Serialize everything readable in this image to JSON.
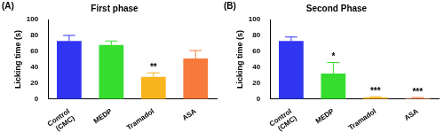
{
  "chart_data": [
    {
      "type": "bar",
      "panel_label": "(A)",
      "title": "First phase",
      "y_label": "Licking time (s)",
      "categories": [
        "Control (CMC)",
        "MEDP",
        "Tramadol",
        "ASA"
      ],
      "values": [
        73,
        68,
        28,
        51
      ],
      "errors": [
        7,
        5,
        5,
        10
      ],
      "significance": [
        null,
        null,
        "**",
        null
      ],
      "colors": [
        "#3035f2",
        "#35dd2e",
        "#f9b51d",
        "#f77a3a"
      ],
      "ylim": [
        0,
        100
      ],
      "yticks": [
        0,
        20,
        40,
        60,
        80,
        100
      ],
      "grid": false
    },
    {
      "type": "bar",
      "panel_label": "(B)",
      "title": "Second Phase",
      "y_label": "Licking time (s)",
      "categories": [
        "Control (CMC)",
        "MEDP",
        "Tramadol",
        "ASA"
      ],
      "values": [
        73,
        32,
        2,
        1
      ],
      "errors": [
        5,
        14,
        1,
        1
      ],
      "significance": [
        null,
        "*",
        "***",
        "***"
      ],
      "colors": [
        "#3035f2",
        "#35dd2e",
        "#f9b51d",
        "#f77a3a"
      ],
      "ylim": [
        0,
        100
      ],
      "yticks": [
        0,
        20,
        40,
        60,
        80,
        100
      ],
      "grid": false
    }
  ]
}
